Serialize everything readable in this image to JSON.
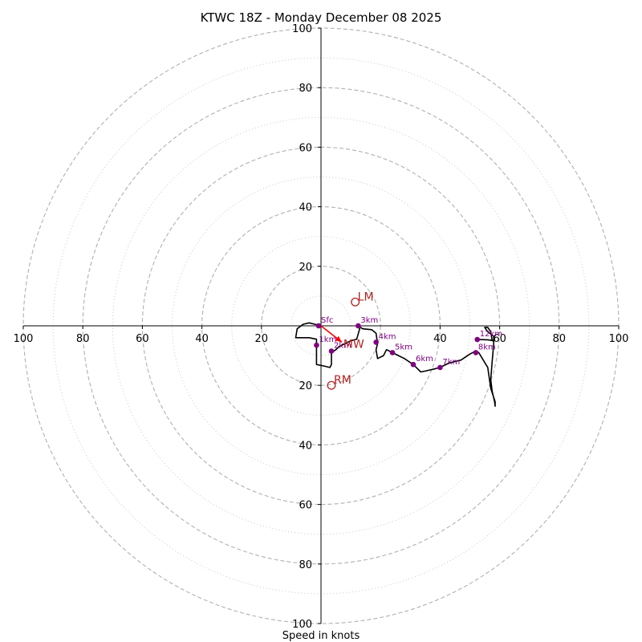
{
  "chart_data": {
    "type": "hodograph",
    "title": "KTWC 18Z - Monday December 08 2025",
    "xlabel": "Speed in knots",
    "axis_range": [
      -100,
      100
    ],
    "rings_dashed": [
      20,
      40,
      60,
      80,
      100
    ],
    "rings_dotted": [
      10,
      30,
      50,
      70,
      90
    ],
    "tick_labels": {
      "x_left": [
        "100",
        "80",
        "60",
        "40",
        "20"
      ],
      "x_right": [
        "40",
        "60",
        "80",
        "100"
      ],
      "y_top": [
        "100",
        "80",
        "60",
        "40",
        "20"
      ],
      "y_bottom": [
        "20",
        "40",
        "60",
        "80",
        "100"
      ]
    },
    "trace": [
      [
        0,
        0
      ],
      [
        -2,
        0.5
      ],
      [
        -4,
        1
      ],
      [
        -6,
        0.5
      ],
      [
        -8,
        -1
      ],
      [
        -8.5,
        -4
      ],
      [
        -4,
        -4
      ],
      [
        -1.5,
        -4.5
      ],
      [
        -1.5,
        -7
      ],
      [
        -1.5,
        -8
      ],
      [
        -1.5,
        -10
      ],
      [
        -1.5,
        -13
      ],
      [
        1,
        -13.5
      ],
      [
        3,
        -14
      ],
      [
        3.5,
        -13
      ],
      [
        3.5,
        -9
      ],
      [
        5,
        -8
      ],
      [
        6,
        -7
      ],
      [
        8,
        -6
      ],
      [
        10,
        -5
      ],
      [
        12,
        -4.5
      ],
      [
        13,
        -1
      ],
      [
        12.5,
        0
      ],
      [
        14,
        -1
      ],
      [
        17,
        -1.3
      ],
      [
        18.5,
        -2.5
      ],
      [
        19,
        -6
      ],
      [
        18.5,
        -8
      ],
      [
        19,
        -11
      ],
      [
        21,
        -10
      ],
      [
        22,
        -8
      ],
      [
        24,
        -9
      ],
      [
        26,
        -10
      ],
      [
        28,
        -11
      ],
      [
        31,
        -13
      ],
      [
        33,
        -15
      ],
      [
        33.5,
        -15.5
      ],
      [
        35,
        -15.2
      ],
      [
        38,
        -14.5
      ],
      [
        40,
        -14
      ],
      [
        43,
        -12.5
      ],
      [
        47,
        -11.5
      ],
      [
        50,
        -9.5
      ],
      [
        52,
        -8.5
      ],
      [
        53,
        -9
      ],
      [
        56,
        -14
      ],
      [
        57,
        -21
      ],
      [
        58.5,
        -25.5
      ],
      [
        58.5,
        -27
      ],
      [
        58.3,
        -25.5
      ],
      [
        57.5,
        -22
      ],
      [
        57,
        -18
      ],
      [
        57.5,
        -12
      ],
      [
        58,
        -6
      ],
      [
        58,
        -3.5
      ],
      [
        56,
        -2
      ],
      [
        55,
        -0.5
      ],
      [
        56,
        -0.5
      ],
      [
        57,
        -2
      ],
      [
        57.5,
        -5
      ],
      [
        58,
        -5
      ],
      [
        56,
        -4.7
      ],
      [
        52.5,
        -4.6
      ]
    ],
    "height_markers": [
      {
        "label": "Sfc",
        "u": -0.8,
        "v": 0
      },
      {
        "label": "1km",
        "u": -1.5,
        "v": -6.5
      },
      {
        "label": "2km",
        "u": 3.5,
        "v": -8.5
      },
      {
        "label": "3km",
        "u": 12.5,
        "v": 0
      },
      {
        "label": "4km",
        "u": 18.5,
        "v": -5.5
      },
      {
        "label": "5km",
        "u": 24,
        "v": -9
      },
      {
        "label": "6km",
        "u": 31,
        "v": -13
      },
      {
        "label": "7km",
        "u": 40,
        "v": -14
      },
      {
        "label": "8km",
        "u": 52,
        "v": -9
      },
      {
        "label": "12km",
        "u": 52.5,
        "v": -4.6
      }
    ],
    "storm_motion": {
      "LM": {
        "label": "LM",
        "u": 11.5,
        "v": 8
      },
      "RM": {
        "label": "RM",
        "u": 3.5,
        "v": -20
      },
      "MW": {
        "label": "MW",
        "u": 7.5,
        "v": -6
      }
    },
    "shear_vector": {
      "from": [
        0,
        0
      ],
      "to": [
        7,
        -5.5
      ]
    },
    "colors": {
      "trace": "#000000",
      "marker": "#800080",
      "motion": "#b22222",
      "shear": "#ff0000",
      "grid": "#b0b0b0",
      "axis": "#000000"
    }
  }
}
